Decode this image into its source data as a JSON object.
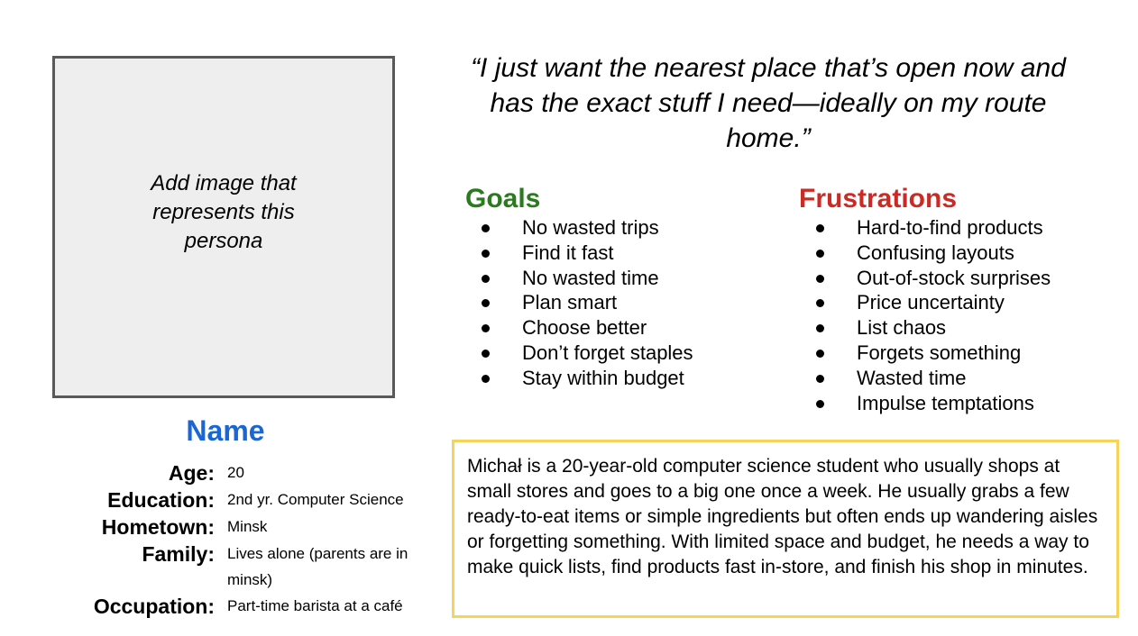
{
  "image_placeholder": {
    "text": "Add image that represents this persona"
  },
  "persona": {
    "name": "Name",
    "details": [
      {
        "label": "Age:",
        "value": "20"
      },
      {
        "label": "Education:",
        "value": "2nd yr. Computer Science"
      },
      {
        "label": "Hometown:",
        "value": "Minsk"
      },
      {
        "label": "Family:",
        "value": "Lives alone (parents are in minsk)"
      },
      {
        "label": "Occupation:",
        "value": "Part-time barista at a café"
      }
    ]
  },
  "quote": "“I just want the nearest place that’s open now and has the exact stuff I need—ideally on my route home.”",
  "goals": {
    "title": "Goals",
    "items": [
      "No wasted trips",
      "Find it fast",
      "No wasted time",
      "Plan smart",
      "Choose better",
      "Don’t forget staples",
      "Stay within budget"
    ]
  },
  "frustrations": {
    "title": "Frustrations",
    "items": [
      "Hard-to-find products",
      "Confusing layouts",
      "Out-of-stock surprises",
      "Price uncertainty",
      "List chaos",
      "Forgets something",
      "Wasted time",
      "Impulse temptations"
    ]
  },
  "bio": "Michał is a 20-year-old computer science student who usually shops at small stores and goes to a big one once a week. He usually grabs a few ready-to-eat items or simple ingredients but often ends up wandering aisles or forgetting something. With limited space and budget, he needs a way to make quick lists, find products fast in-store, and finish his shop in minutes.",
  "colors": {
    "name": "#1a66d2",
    "goals_title": "#2a7a1e",
    "frustrations_title": "#cc2a24",
    "bio_border": "#f6d35a",
    "image_border": "#595959",
    "image_fill": "#eeeeee"
  }
}
